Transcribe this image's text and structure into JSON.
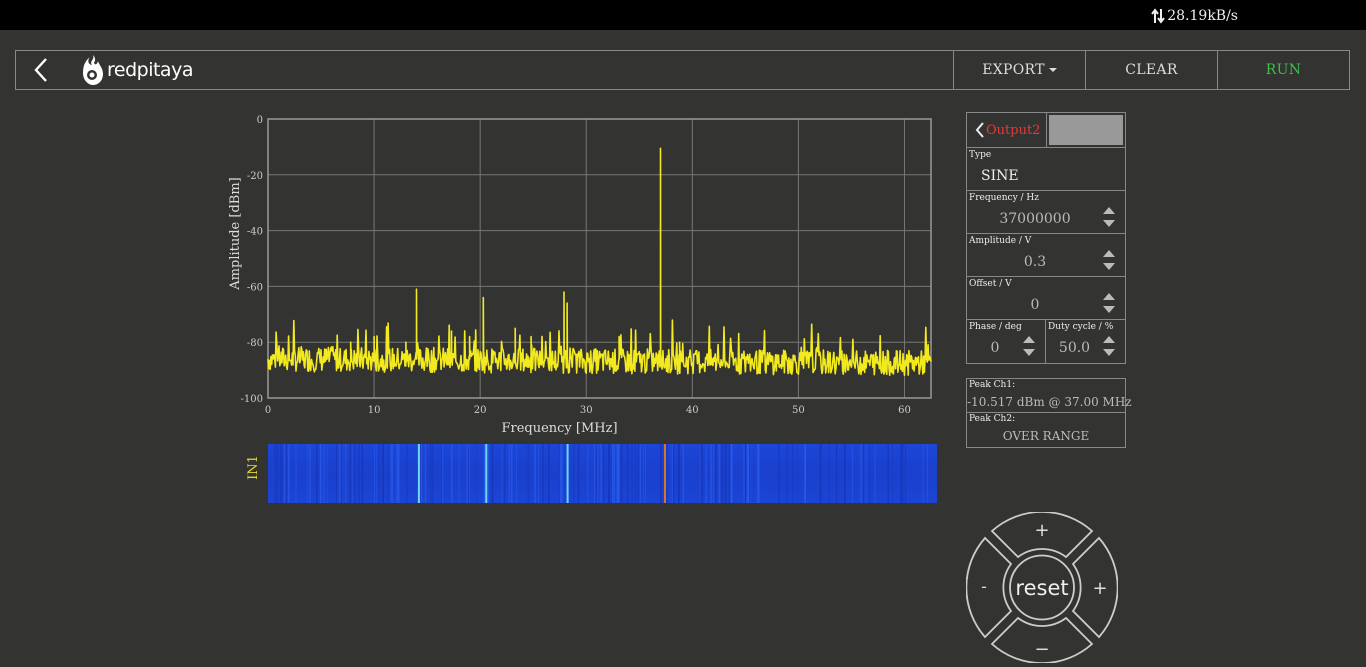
{
  "topbar": {
    "net_speed": "28.19kB/s"
  },
  "header": {
    "logo_text": "redpitaya",
    "export_label": "EXPORT",
    "clear_label": "CLEAR",
    "run_label": "RUN"
  },
  "waterfall": {
    "label": "IN1"
  },
  "output_panel": {
    "tab_label": "Output2",
    "type_label": "Type",
    "type_value": "SINE",
    "frequency_label": "Frequency  / Hz",
    "frequency_value": "37000000",
    "amplitude_label": "Amplitude  / V",
    "amplitude_value": "0.3",
    "offset_label": "Offset  / V",
    "offset_value": "0",
    "phase_label": "Phase   / deg",
    "phase_value": "0",
    "duty_label": "Duty cycle  / %",
    "duty_value": "50.0"
  },
  "peak_panel": {
    "ch1_label": "Peak  Ch1:",
    "ch1_value": "-10.517  dBm  @ 37.00  MHz",
    "ch2_label": "Peak  Ch2:",
    "ch2_value": "OVER RANGE"
  },
  "dpad": {
    "center_label": "reset",
    "up": "+",
    "down": "−",
    "left": "-",
    "right": "+"
  },
  "colors": {
    "trace": "#f2ea1e",
    "run": "#3cbf50",
    "output_tab": "#e63a3a",
    "waterfall": "#1b46d8"
  },
  "chart_data": {
    "type": "line",
    "xlabel": "Frequency   [MHz]",
    "ylabel": "Amplitude  [dBm]",
    "xlim": [
      0,
      62.5
    ],
    "ylim": [
      -100,
      0
    ],
    "x_ticks": [
      0,
      10,
      20,
      30,
      40,
      50,
      60
    ],
    "y_ticks": [
      0,
      -20,
      -40,
      -60,
      -80,
      -100
    ],
    "grid": true,
    "noise_floor": -86,
    "peaks": [
      {
        "x": 37.0,
        "y": -10.5
      },
      {
        "x": 14.0,
        "y": -61
      },
      {
        "x": 20.3,
        "y": -64
      },
      {
        "x": 27.9,
        "y": -62
      },
      {
        "x": 28.2,
        "y": -66
      },
      {
        "x": 23.3,
        "y": -75
      },
      {
        "x": 17.3,
        "y": -76
      },
      {
        "x": 19.0,
        "y": -78
      },
      {
        "x": 24.8,
        "y": -78
      },
      {
        "x": 10.0,
        "y": -78
      },
      {
        "x": 33.1,
        "y": -78
      },
      {
        "x": 38.8,
        "y": -80
      },
      {
        "x": 13.0,
        "y": -80
      },
      {
        "x": 7.8,
        "y": -80
      }
    ],
    "waterfall_lines_mhz": [
      14.0,
      20.3,
      27.9,
      37.0
    ]
  }
}
